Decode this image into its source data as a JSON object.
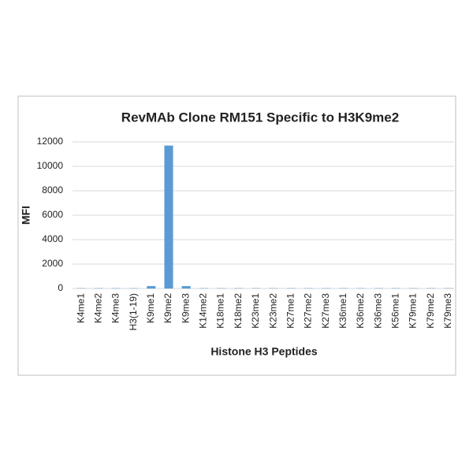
{
  "chart_data": {
    "type": "bar",
    "title": "RevMAb Clone RM151 Specific to H3K9me2",
    "x_label": "Histone H3 Peptides",
    "y_label": "MFI",
    "categories": [
      "K4me1",
      "K4me2",
      "K4me3",
      "H3(1-19)",
      "K9me1",
      "K9me2",
      "K9me3",
      "K14me2",
      "K18me1",
      "K18me2",
      "K23me1",
      "K23me2",
      "K27me1",
      "K27me2",
      "K27me3",
      "K36me1",
      "K36me2",
      "K36me3",
      "K56me1",
      "K79me1",
      "K79me2",
      "K79me3"
    ],
    "values": [
      30,
      30,
      30,
      30,
      200,
      11700,
      200,
      30,
      30,
      30,
      30,
      30,
      30,
      30,
      30,
      30,
      30,
      30,
      30,
      30,
      30,
      30
    ],
    "color": "#5b9bd5",
    "ylim": [
      0,
      12000
    ],
    "yticks": [
      0,
      2000,
      4000,
      6000,
      8000,
      10000,
      12000
    ],
    "grid": true
  }
}
